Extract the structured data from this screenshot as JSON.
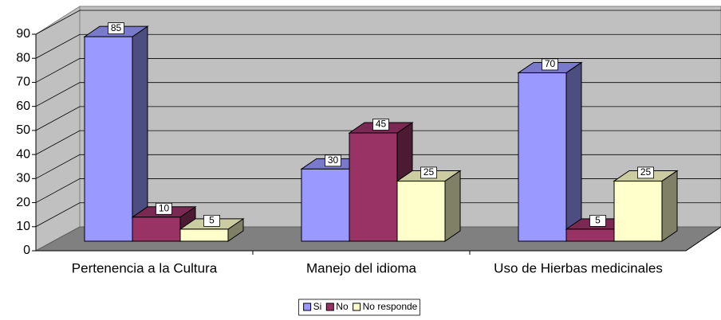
{
  "chart_data": {
    "type": "bar3d",
    "categories": [
      "Pertenencia a la Cultura",
      "Manejo del idioma",
      "Uso de Hierbas medicinales"
    ],
    "series": [
      {
        "name": "Si",
        "color": "#9999ff",
        "values": [
          85,
          30,
          70
        ]
      },
      {
        "name": "No",
        "color": "#993366",
        "values": [
          10,
          45,
          5
        ]
      },
      {
        "name": "No responde",
        "color": "#ffffcc",
        "values": [
          5,
          25,
          25
        ]
      }
    ],
    "ylim": [
      0,
      90
    ],
    "yticks": [
      0,
      10,
      20,
      30,
      40,
      50,
      60,
      70,
      80,
      90
    ],
    "grid": true,
    "legend": "bottom"
  }
}
